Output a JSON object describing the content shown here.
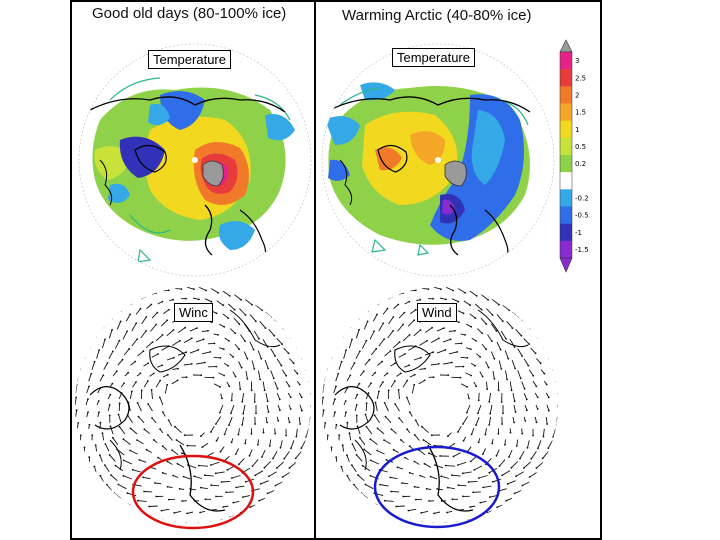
{
  "left_panel": {
    "title": "Good old days (80-100% ice)",
    "top_label": "Temperature",
    "bottom_label": "Winc"
  },
  "right_panel": {
    "title": "Warming Arctic (40-80% ice)",
    "top_label": "Temperature",
    "bottom_label": "Wind"
  },
  "colorbar": {
    "ticks": [
      "3",
      "2.5",
      "2",
      "1.5",
      "1",
      "0.5",
      "0.2",
      "-0.2",
      "-0.5",
      "-1",
      "-1.5"
    ],
    "colors": [
      "#e8208a",
      "#e83c3c",
      "#f07a2a",
      "#f5a628",
      "#f2d81e",
      "#c9e23a",
      "#8fd24a",
      "#ffffff",
      "#35a8e8",
      "#2f6ee8",
      "#3232b8",
      "#8a2bd2"
    ]
  },
  "highlight_colors": {
    "left_ellipse": "#e01010",
    "right_ellipse": "#1a1ad0"
  }
}
